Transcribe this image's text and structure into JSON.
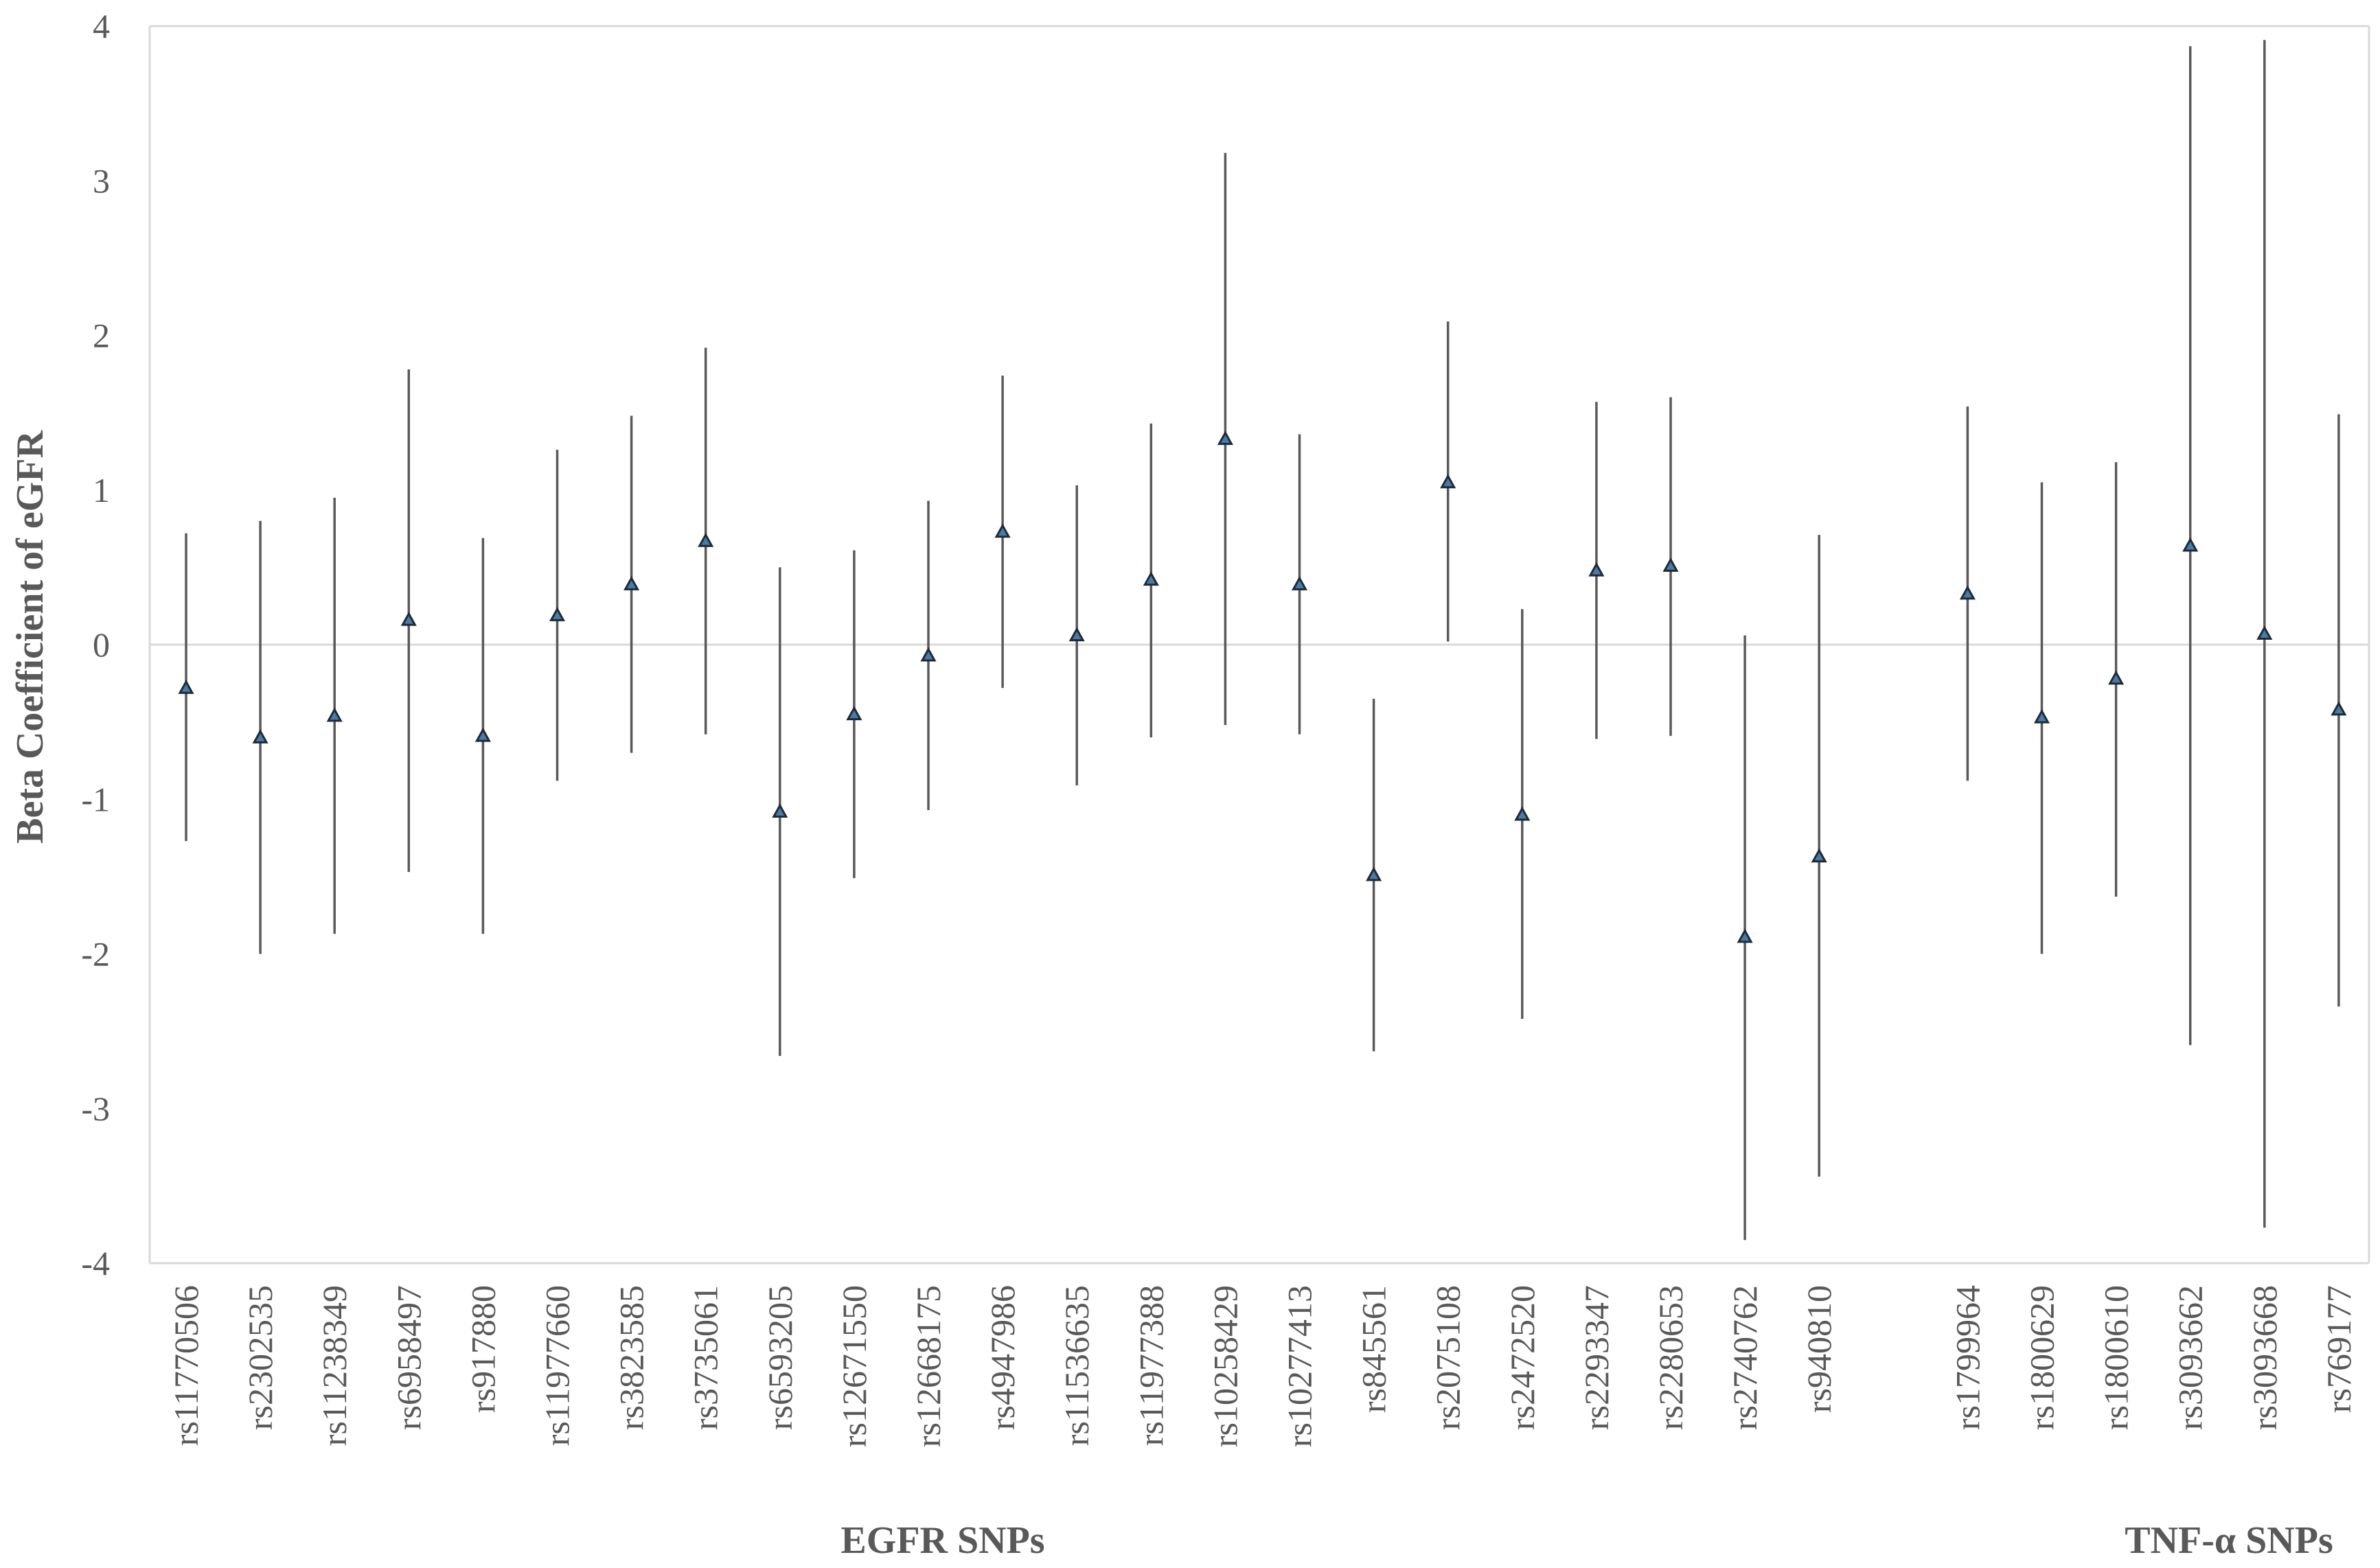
{
  "chart_data": {
    "type": "scatter",
    "title": "",
    "xlabel": "",
    "ylabel": "Beta Coefficient of eGFR",
    "ylim": [
      -4,
      4
    ],
    "yticks": [
      -4,
      -3,
      -2,
      -1,
      0,
      1,
      2,
      3,
      4
    ],
    "grid": false,
    "legend": "none",
    "marker": "triangle",
    "colors": {
      "axis": "#d9d9d9",
      "zero_line": "#d9d9d9",
      "whisker": "#595959",
      "marker_fill": "#4a7aa7",
      "marker_edge": "#1f2a36",
      "text": "#595959"
    },
    "groups": [
      {
        "label": "EGFR SNPs",
        "points": [
          {
            "snp": "rs11770506",
            "beta": -0.28,
            "lower": -1.27,
            "upper": 0.72
          },
          {
            "snp": "rs2302535",
            "beta": -0.6,
            "lower": -2.0,
            "upper": 0.8
          },
          {
            "snp": "rs11238349",
            "beta": -0.46,
            "lower": -1.87,
            "upper": 0.95
          },
          {
            "snp": "rs6958497",
            "beta": 0.16,
            "lower": -1.47,
            "upper": 1.78
          },
          {
            "snp": "rs917880",
            "beta": -0.59,
            "lower": -1.87,
            "upper": 0.69
          },
          {
            "snp": "rs11977660",
            "beta": 0.19,
            "lower": -0.88,
            "upper": 1.26
          },
          {
            "snp": "rs3823585",
            "beta": 0.39,
            "lower": -0.7,
            "upper": 1.48
          },
          {
            "snp": "rs3735061",
            "beta": 0.67,
            "lower": -0.58,
            "upper": 1.92
          },
          {
            "snp": "rs6593205",
            "beta": -1.08,
            "lower": -2.66,
            "upper": 0.5
          },
          {
            "snp": "rs12671550",
            "beta": -0.45,
            "lower": -1.51,
            "upper": 0.61
          },
          {
            "snp": "rs12668175",
            "beta": -0.07,
            "lower": -1.07,
            "upper": 0.93
          },
          {
            "snp": "rs4947986",
            "beta": 0.73,
            "lower": -0.28,
            "upper": 1.74
          },
          {
            "snp": "rs11536635",
            "beta": 0.06,
            "lower": -0.91,
            "upper": 1.03
          },
          {
            "snp": "rs11977388",
            "beta": 0.42,
            "lower": -0.6,
            "upper": 1.43
          },
          {
            "snp": "rs10258429",
            "beta": 1.33,
            "lower": -0.52,
            "upper": 3.18
          },
          {
            "snp": "rs10277413",
            "beta": 0.39,
            "lower": -0.58,
            "upper": 1.36
          },
          {
            "snp": "rs845561",
            "beta": -1.49,
            "lower": -2.63,
            "upper": -0.35
          },
          {
            "snp": "rs2075108",
            "beta": 1.05,
            "lower": 0.02,
            "upper": 2.09
          },
          {
            "snp": "rs2472520",
            "beta": -1.1,
            "lower": -2.42,
            "upper": 0.23
          },
          {
            "snp": "rs2293347",
            "beta": 0.48,
            "lower": -0.61,
            "upper": 1.57
          },
          {
            "snp": "rs2280653",
            "beta": 0.51,
            "lower": -0.59,
            "upper": 1.6
          },
          {
            "snp": "rs2740762",
            "beta": -1.89,
            "lower": -3.85,
            "upper": 0.06
          },
          {
            "snp": "rs940810",
            "beta": -1.37,
            "lower": -3.44,
            "upper": 0.71
          }
        ]
      },
      {
        "label": "TNF-α SNPs",
        "points": [
          {
            "snp": "rs1799964",
            "beta": 0.33,
            "lower": -0.88,
            "upper": 1.54
          },
          {
            "snp": "rs1800629",
            "beta": -0.47,
            "lower": -2.0,
            "upper": 1.05
          },
          {
            "snp": "rs1800610",
            "beta": -0.22,
            "lower": -1.63,
            "upper": 1.18
          },
          {
            "snp": "rs3093662",
            "beta": 0.64,
            "lower": -2.59,
            "upper": 3.87
          },
          {
            "snp": "rs3093668",
            "beta": 0.07,
            "lower": -3.77,
            "upper": 3.91
          },
          {
            "snp": "rs769177",
            "beta": -0.42,
            "lower": -2.34,
            "upper": 1.49
          }
        ]
      }
    ]
  }
}
